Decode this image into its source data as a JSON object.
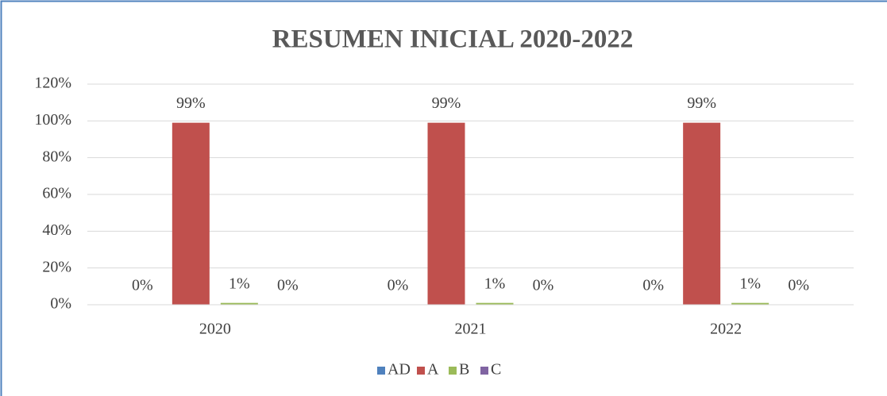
{
  "chart_data": {
    "type": "bar",
    "title": "RESUMEN INICIAL 2020-2022",
    "categories": [
      "2020",
      "2021",
      "2022"
    ],
    "series": [
      {
        "name": "AD",
        "color": "#4f81bd",
        "values": [
          0,
          0,
          0
        ],
        "value_labels": [
          "0%",
          "0%",
          "0%"
        ]
      },
      {
        "name": "A",
        "color": "#c0504d",
        "values": [
          99,
          99,
          99
        ],
        "value_labels": [
          "99%",
          "99%",
          "99%"
        ]
      },
      {
        "name": "B",
        "color": "#9bbb59",
        "values": [
          1,
          1,
          1
        ],
        "value_labels": [
          "1%",
          "1%",
          "1%"
        ]
      },
      {
        "name": "C",
        "color": "#8064a2",
        "values": [
          0,
          0,
          0
        ],
        "value_labels": [
          "0%",
          "0%",
          "0%"
        ]
      }
    ],
    "ylim": [
      0,
      120
    ],
    "yticks": [
      {
        "value": 0,
        "label": "0%"
      },
      {
        "value": 20,
        "label": "20%"
      },
      {
        "value": 40,
        "label": "40%"
      },
      {
        "value": 60,
        "label": "60%"
      },
      {
        "value": 80,
        "label": "80%"
      },
      {
        "value": 100,
        "label": "100%"
      },
      {
        "value": 120,
        "label": "120%"
      }
    ],
    "grid": true,
    "legend": "bottom"
  }
}
